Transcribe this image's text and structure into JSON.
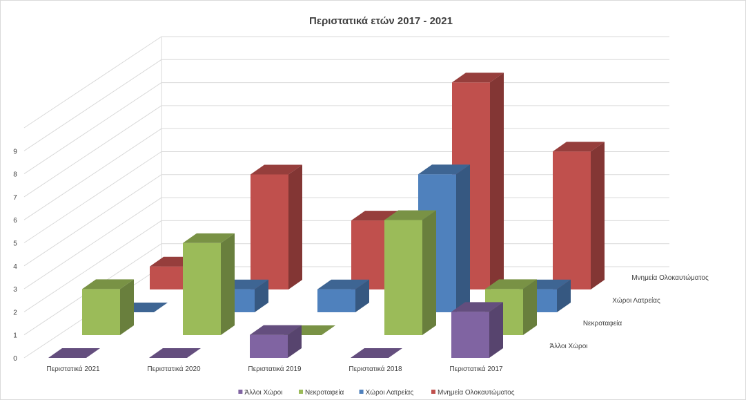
{
  "chart_data": {
    "type": "bar",
    "title": "Περιστατικά ετών 2017 - 2021",
    "categories": [
      "Περιστατικά 2021",
      "Περιστατικά 2020",
      "Περιστατικά 2019",
      "Περιστατικά 2018",
      "Περιστατικά 2017"
    ],
    "series": [
      {
        "name": "Άλλοι Χώροι",
        "values": [
          0,
          0,
          1,
          0,
          2
        ],
        "color": "#8064a2"
      },
      {
        "name": "Νεκροταφεία",
        "values": [
          2,
          4,
          0,
          5,
          2
        ],
        "color": "#9bbb59"
      },
      {
        "name": "Χώροι Λατρείας",
        "values": [
          0,
          1,
          1,
          6,
          1
        ],
        "color": "#4f81bd"
      },
      {
        "name": "Μνημεία Ολοκαυτώματος",
        "values": [
          1,
          5,
          3,
          9,
          6
        ],
        "color": "#c0504d"
      }
    ],
    "yticks": [
      0,
      1,
      2,
      3,
      4,
      5,
      6,
      7,
      8,
      9
    ],
    "ylim": [
      0,
      9
    ],
    "grid": true,
    "legend": "bottom"
  }
}
